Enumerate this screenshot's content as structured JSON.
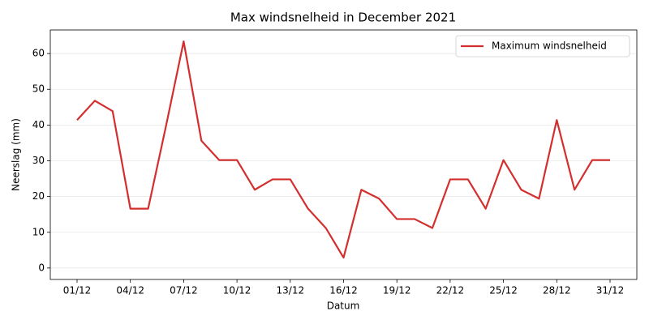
{
  "chart_data": {
    "type": "line",
    "title": "Max windsnelheid in December 2021",
    "xlabel": "Datum",
    "ylabel": "Neerslag (mm)",
    "categories": [
      "01/12",
      null,
      null,
      "04/12",
      null,
      null,
      "07/12",
      null,
      null,
      "10/12",
      null,
      null,
      "13/12",
      null,
      null,
      "16/12",
      null,
      null,
      "19/12",
      null,
      null,
      "22/12",
      null,
      null,
      "25/12",
      null,
      null,
      "28/12",
      null,
      null,
      "31/12"
    ],
    "series": [
      {
        "name": "Maximum windsnelheid",
        "color": "#d32f2f",
        "values": [
          41.4,
          46.8,
          43.9,
          16.6,
          16.6,
          39.6,
          63.4,
          35.6,
          30.2,
          30.2,
          21.9,
          24.8,
          24.8,
          16.6,
          11.2,
          2.9,
          21.9,
          19.4,
          13.7,
          13.7,
          11.2,
          24.8,
          24.8,
          16.6,
          30.2,
          21.9,
          19.4,
          41.4,
          21.9,
          30.2,
          30.2
        ]
      }
    ],
    "ylim": [
      -3.2,
      66.6
    ],
    "yticks": [
      0,
      10,
      20,
      30,
      40,
      50,
      60
    ],
    "grid": true,
    "legend": "upper right"
  }
}
